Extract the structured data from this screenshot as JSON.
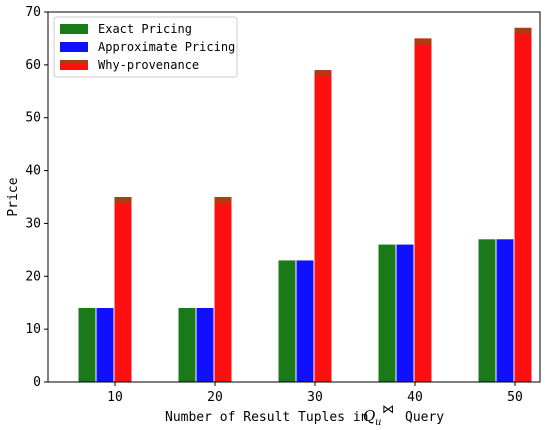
{
  "chart_data": {
    "type": "bar",
    "categories": [
      "10",
      "20",
      "30",
      "40",
      "50"
    ],
    "series": [
      {
        "name": "Exact Pricing",
        "values": [
          14,
          14,
          23,
          26,
          27
        ],
        "color": "#1a7a1a"
      },
      {
        "name": "Approximate Pricing",
        "values": [
          14,
          14,
          23,
          26,
          27
        ],
        "color": "#1010ff"
      },
      {
        "name": "Why-provenance",
        "values": [
          35,
          35,
          59,
          65,
          67
        ],
        "color": "#ff1010",
        "cap_color": "#b03a10"
      }
    ],
    "title": "",
    "xlabel": {
      "prefix": "Number of Result Tuples in",
      "q": "Q",
      "q_sub": "u",
      "join": "⋈",
      "suffix": "Query"
    },
    "ylabel": "Price",
    "ylim": [
      0,
      70
    ],
    "yticks": [
      0,
      10,
      20,
      30,
      40,
      50,
      60,
      70
    ],
    "grid": false,
    "legend_position": "top-left"
  }
}
